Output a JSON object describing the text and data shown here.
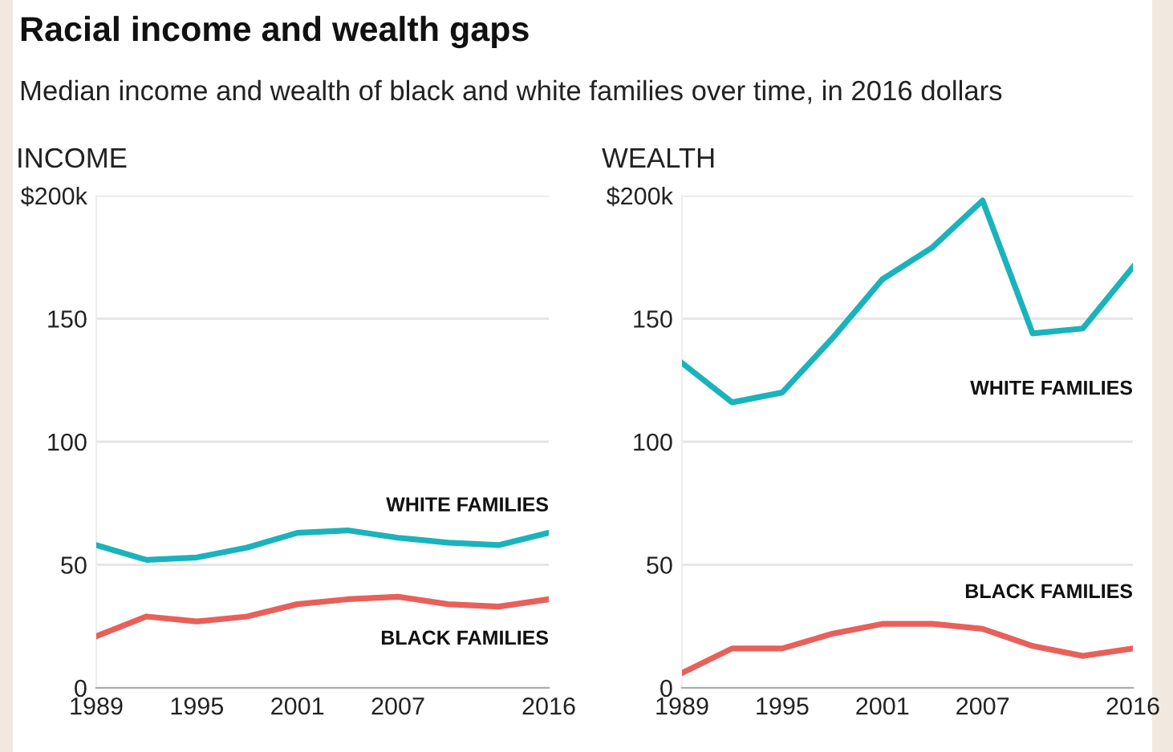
{
  "chart_data": [
    {
      "type": "line",
      "title": "Racial income and wealth gaps",
      "subtitle": "Median income and wealth of black and white families over time, in 2016 dollars",
      "ylabel": "INCOME",
      "x": [
        1989,
        1992,
        1995,
        1998,
        2001,
        2004,
        2007,
        2010,
        2013,
        2016
      ],
      "series": [
        {
          "name": "WHITE FAMILIES",
          "color": "#1ab3bc",
          "values": [
            58,
            52,
            53,
            57,
            63,
            64,
            61,
            59,
            58,
            63
          ]
        },
        {
          "name": "BLACK FAMILIES",
          "color": "#e8605a",
          "values": [
            21,
            29,
            27,
            29,
            34,
            36,
            37,
            34,
            33,
            36
          ]
        }
      ],
      "xlim": [
        1989,
        2016
      ],
      "xticks": [
        1989,
        1995,
        2001,
        2007,
        2016
      ],
      "ylim": [
        0,
        200
      ],
      "yticks": [
        0,
        50,
        100,
        150,
        {
          "value": 200,
          "label": "$200k"
        }
      ],
      "grid": "y",
      "marker": "none",
      "line_style": "solid"
    },
    {
      "type": "line",
      "ylabel": "WEALTH",
      "x": [
        1989,
        1992,
        1995,
        1998,
        2001,
        2004,
        2007,
        2010,
        2013,
        2016
      ],
      "series": [
        {
          "name": "WHITE FAMILIES",
          "color": "#1ab3bc",
          "values": [
            132,
            116,
            120,
            142,
            166,
            179,
            198,
            144,
            146,
            171
          ]
        },
        {
          "name": "BLACK FAMILIES",
          "color": "#e8605a",
          "values": [
            6,
            16,
            16,
            22,
            26,
            26,
            24,
            17,
            13,
            16
          ]
        }
      ],
      "xlim": [
        1989,
        2016
      ],
      "xticks": [
        1989,
        1995,
        2001,
        2007,
        2016
      ],
      "ylim": [
        0,
        200
      ],
      "yticks": [
        0,
        50,
        100,
        150,
        {
          "value": 200,
          "label": "$200k"
        }
      ],
      "grid": "y",
      "marker": "none",
      "line_style": "solid"
    }
  ]
}
